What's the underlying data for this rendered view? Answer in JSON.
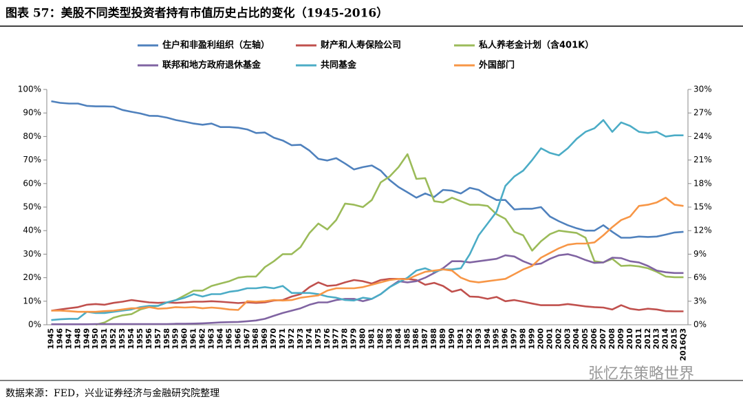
{
  "chart_data": {
    "type": "line",
    "title": "图表 57：美股不同类型投资者持有市值历史占比的变化（1945-2016）",
    "source": "数据来源：FED，兴业证券经济与金融研究院整理",
    "watermark": "张忆东策略世界",
    "categories": [
      "1945",
      "1946",
      "1947",
      "1948",
      "1949",
      "1950",
      "1951",
      "1952",
      "1953",
      "1954",
      "1955",
      "1956",
      "1957",
      "1958",
      "1959",
      "1960",
      "1961",
      "1962",
      "1963",
      "1964",
      "1965",
      "1966",
      "1967",
      "1968",
      "1969",
      "1970",
      "1971",
      "1972",
      "1973",
      "1974",
      "1975",
      "1976",
      "1977",
      "1978",
      "1979",
      "1980",
      "1981",
      "1982",
      "1983",
      "1984",
      "1985",
      "1986",
      "1987",
      "1988",
      "1989",
      "1990",
      "1991",
      "1992",
      "1993",
      "1994",
      "1995",
      "1996",
      "1997",
      "1998",
      "1999",
      "2000",
      "2001",
      "2002",
      "2003",
      "2004",
      "2005",
      "2006",
      "2007",
      "2008",
      "2009",
      "2010",
      "2011",
      "2012",
      "2013",
      "2014",
      "2015",
      "2016Q3"
    ],
    "ylim": [
      0,
      100
    ],
    "yticks": [
      {
        "value": 0,
        "label": "0%"
      },
      {
        "value": 10,
        "label": "10%"
      },
      {
        "value": 20,
        "label": "20%"
      },
      {
        "value": 30,
        "label": "30%"
      },
      {
        "value": 40,
        "label": "40%"
      },
      {
        "value": 50,
        "label": "50%"
      },
      {
        "value": 60,
        "label": "60%"
      },
      {
        "value": 70,
        "label": "70%"
      },
      {
        "value": 80,
        "label": "80%"
      },
      {
        "value": 90,
        "label": "90%"
      },
      {
        "value": 100,
        "label": "100%"
      }
    ],
    "y2lim": [
      0,
      30
    ],
    "y2ticks": [
      {
        "value": 0,
        "label": "0%"
      },
      {
        "value": 3,
        "label": "3%"
      },
      {
        "value": 6,
        "label": "6%"
      },
      {
        "value": 9,
        "label": "9%"
      },
      {
        "value": 12,
        "label": "12%"
      },
      {
        "value": 15,
        "label": "15%"
      },
      {
        "value": 18,
        "label": "18%"
      },
      {
        "value": 21,
        "label": "21%"
      },
      {
        "value": 24,
        "label": "24%"
      },
      {
        "value": 27,
        "label": "27%"
      },
      {
        "value": 30,
        "label": "30%"
      }
    ],
    "series": [
      {
        "name": "住户和非盈利组织（左轴）",
        "color": "#4f81bd",
        "values": [
          95,
          94.3,
          94,
          94,
          93,
          92.8,
          92.8,
          92.7,
          91.3,
          90.5,
          89.8,
          88.8,
          88.7,
          88,
          87,
          86.3,
          85.5,
          85,
          85.5,
          84,
          84,
          83.7,
          83,
          81.5,
          81.7,
          79.5,
          78.3,
          76.3,
          76.5,
          74,
          70.5,
          69.8,
          70.8,
          68.5,
          66,
          67,
          67.7,
          65.5,
          61.5,
          58.5,
          56.3,
          54,
          55.8,
          54.3,
          57.3,
          57,
          55.8,
          58.2,
          57.3,
          55,
          53,
          53,
          49,
          49.3,
          49.3,
          50,
          46,
          44,
          42.3,
          41,
          40,
          40,
          42.3,
          39.5,
          37,
          37,
          37.5,
          37.3,
          37.5,
          38.3,
          39.2,
          39.5
        ]
      },
      {
        "name": "财产和人寿保险公司",
        "color": "#c0504d",
        "axis": "y2",
        "values": [
          1.8,
          1.95,
          2.1,
          2.25,
          2.55,
          2.64,
          2.55,
          2.79,
          2.94,
          3.15,
          3,
          2.85,
          2.79,
          2.85,
          2.79,
          2.85,
          2.94,
          2.94,
          3,
          2.94,
          2.85,
          2.76,
          2.85,
          2.79,
          2.85,
          3.09,
          3.15,
          3.6,
          3.9,
          4.8,
          5.4,
          4.95,
          5.04,
          5.4,
          5.7,
          5.55,
          5.25,
          5.7,
          5.85,
          5.85,
          5.85,
          5.7,
          5.1,
          5.34,
          4.95,
          4.2,
          4.5,
          3.6,
          3.54,
          3.3,
          3.54,
          3,
          3.15,
          2.94,
          2.7,
          2.49,
          2.49,
          2.49,
          2.64,
          2.49,
          2.34,
          2.25,
          2.19,
          1.95,
          2.49,
          2.04,
          1.89,
          2.04,
          1.95,
          1.74,
          1.71,
          1.71
        ]
      },
      {
        "name": "私人养老金计划（含401K）",
        "color": "#9bbb59",
        "axis": "y2",
        "values": [
          null,
          null,
          null,
          null,
          null,
          0,
          0.3,
          0.9,
          1.2,
          1.35,
          1.95,
          2.25,
          2.4,
          2.85,
          3.15,
          3.75,
          4.35,
          4.35,
          4.95,
          5.25,
          5.55,
          6,
          6.15,
          6.15,
          7.35,
          8.1,
          9,
          9,
          9.9,
          11.7,
          12.9,
          12.15,
          13.35,
          15.45,
          15.3,
          15,
          15.9,
          18.15,
          18.9,
          20.1,
          21.75,
          18.6,
          18.69,
          15.75,
          15.6,
          16.2,
          15.75,
          15.3,
          15.3,
          15.15,
          14.1,
          13.5,
          11.85,
          11.4,
          9.45,
          10.65,
          11.55,
          12,
          11.85,
          11.7,
          11.1,
          8.1,
          7.95,
          8.4,
          7.5,
          7.56,
          7.44,
          7.2,
          6.75,
          6.15,
          6.06,
          6.06
        ]
      },
      {
        "name": "联邦和地方政府退休基金",
        "color": "#8064a2",
        "axis": "y2",
        "values": [
          0.06,
          0.06,
          0.06,
          0.06,
          0.06,
          0.09,
          0.09,
          0.09,
          0.09,
          0.09,
          0.09,
          0.09,
          0.09,
          0.09,
          0.12,
          0.12,
          0.15,
          0.18,
          0.24,
          0.3,
          0.33,
          0.36,
          0.45,
          0.54,
          0.75,
          1.14,
          1.5,
          1.8,
          2.1,
          2.55,
          2.85,
          2.85,
          3.15,
          3.3,
          3.3,
          3,
          3.3,
          3.9,
          4.8,
          5.55,
          5.4,
          5.55,
          6,
          6.6,
          7.2,
          8.1,
          8.1,
          7.95,
          8.1,
          8.25,
          8.4,
          8.85,
          8.7,
          8.1,
          7.65,
          7.8,
          8.4,
          8.85,
          9,
          8.7,
          8.25,
          7.89,
          7.95,
          8.55,
          8.49,
          8.1,
          7.95,
          7.5,
          6.9,
          6.69,
          6.6,
          6.6
        ]
      },
      {
        "name": "共同基金",
        "color": "#4bacc6",
        "axis": "y2",
        "values": [
          0.6,
          0.69,
          0.75,
          0.75,
          1.65,
          1.5,
          1.5,
          1.65,
          1.8,
          1.95,
          2.25,
          2.4,
          2.4,
          2.85,
          3.15,
          3.45,
          3.9,
          3.6,
          3.9,
          3.9,
          4.2,
          4.35,
          4.65,
          4.65,
          4.8,
          4.65,
          4.95,
          4.05,
          4.05,
          4.05,
          3.9,
          3.6,
          3.45,
          3.15,
          3.09,
          3.45,
          3.3,
          3.9,
          4.8,
          5.4,
          6,
          6.9,
          7.2,
          6.75,
          7.05,
          7.05,
          7.2,
          9,
          11.4,
          12.9,
          14.4,
          17.7,
          18.9,
          19.65,
          21,
          22.5,
          21.9,
          21.6,
          22.5,
          23.7,
          24.6,
          25.05,
          26.1,
          24.6,
          25.8,
          25.35,
          24.6,
          24.45,
          24.6,
          24,
          24.15,
          24.15
        ]
      },
      {
        "name": "外国部门",
        "color": "#f79646",
        "axis": "y2",
        "values": [
          1.8,
          1.8,
          1.74,
          1.65,
          1.65,
          1.65,
          1.74,
          1.8,
          1.95,
          2.1,
          2.1,
          2.25,
          2.04,
          2.1,
          2.25,
          2.19,
          2.25,
          2.1,
          2.19,
          2.1,
          1.95,
          1.89,
          3,
          2.94,
          3,
          3.15,
          3.09,
          3.15,
          3.45,
          3.6,
          3.75,
          4.35,
          4.65,
          4.65,
          4.65,
          4.8,
          5.1,
          5.4,
          5.7,
          5.85,
          5.79,
          6.3,
          6.75,
          6.9,
          7.05,
          6.9,
          6,
          5.55,
          5.4,
          5.55,
          5.7,
          5.85,
          6.45,
          7.05,
          7.5,
          8.55,
          9.15,
          9.75,
          10.2,
          10.35,
          10.35,
          10.5,
          11.4,
          12.45,
          13.35,
          13.8,
          15.15,
          15.3,
          15.6,
          16.2,
          15.3,
          15.15
        ]
      }
    ]
  }
}
